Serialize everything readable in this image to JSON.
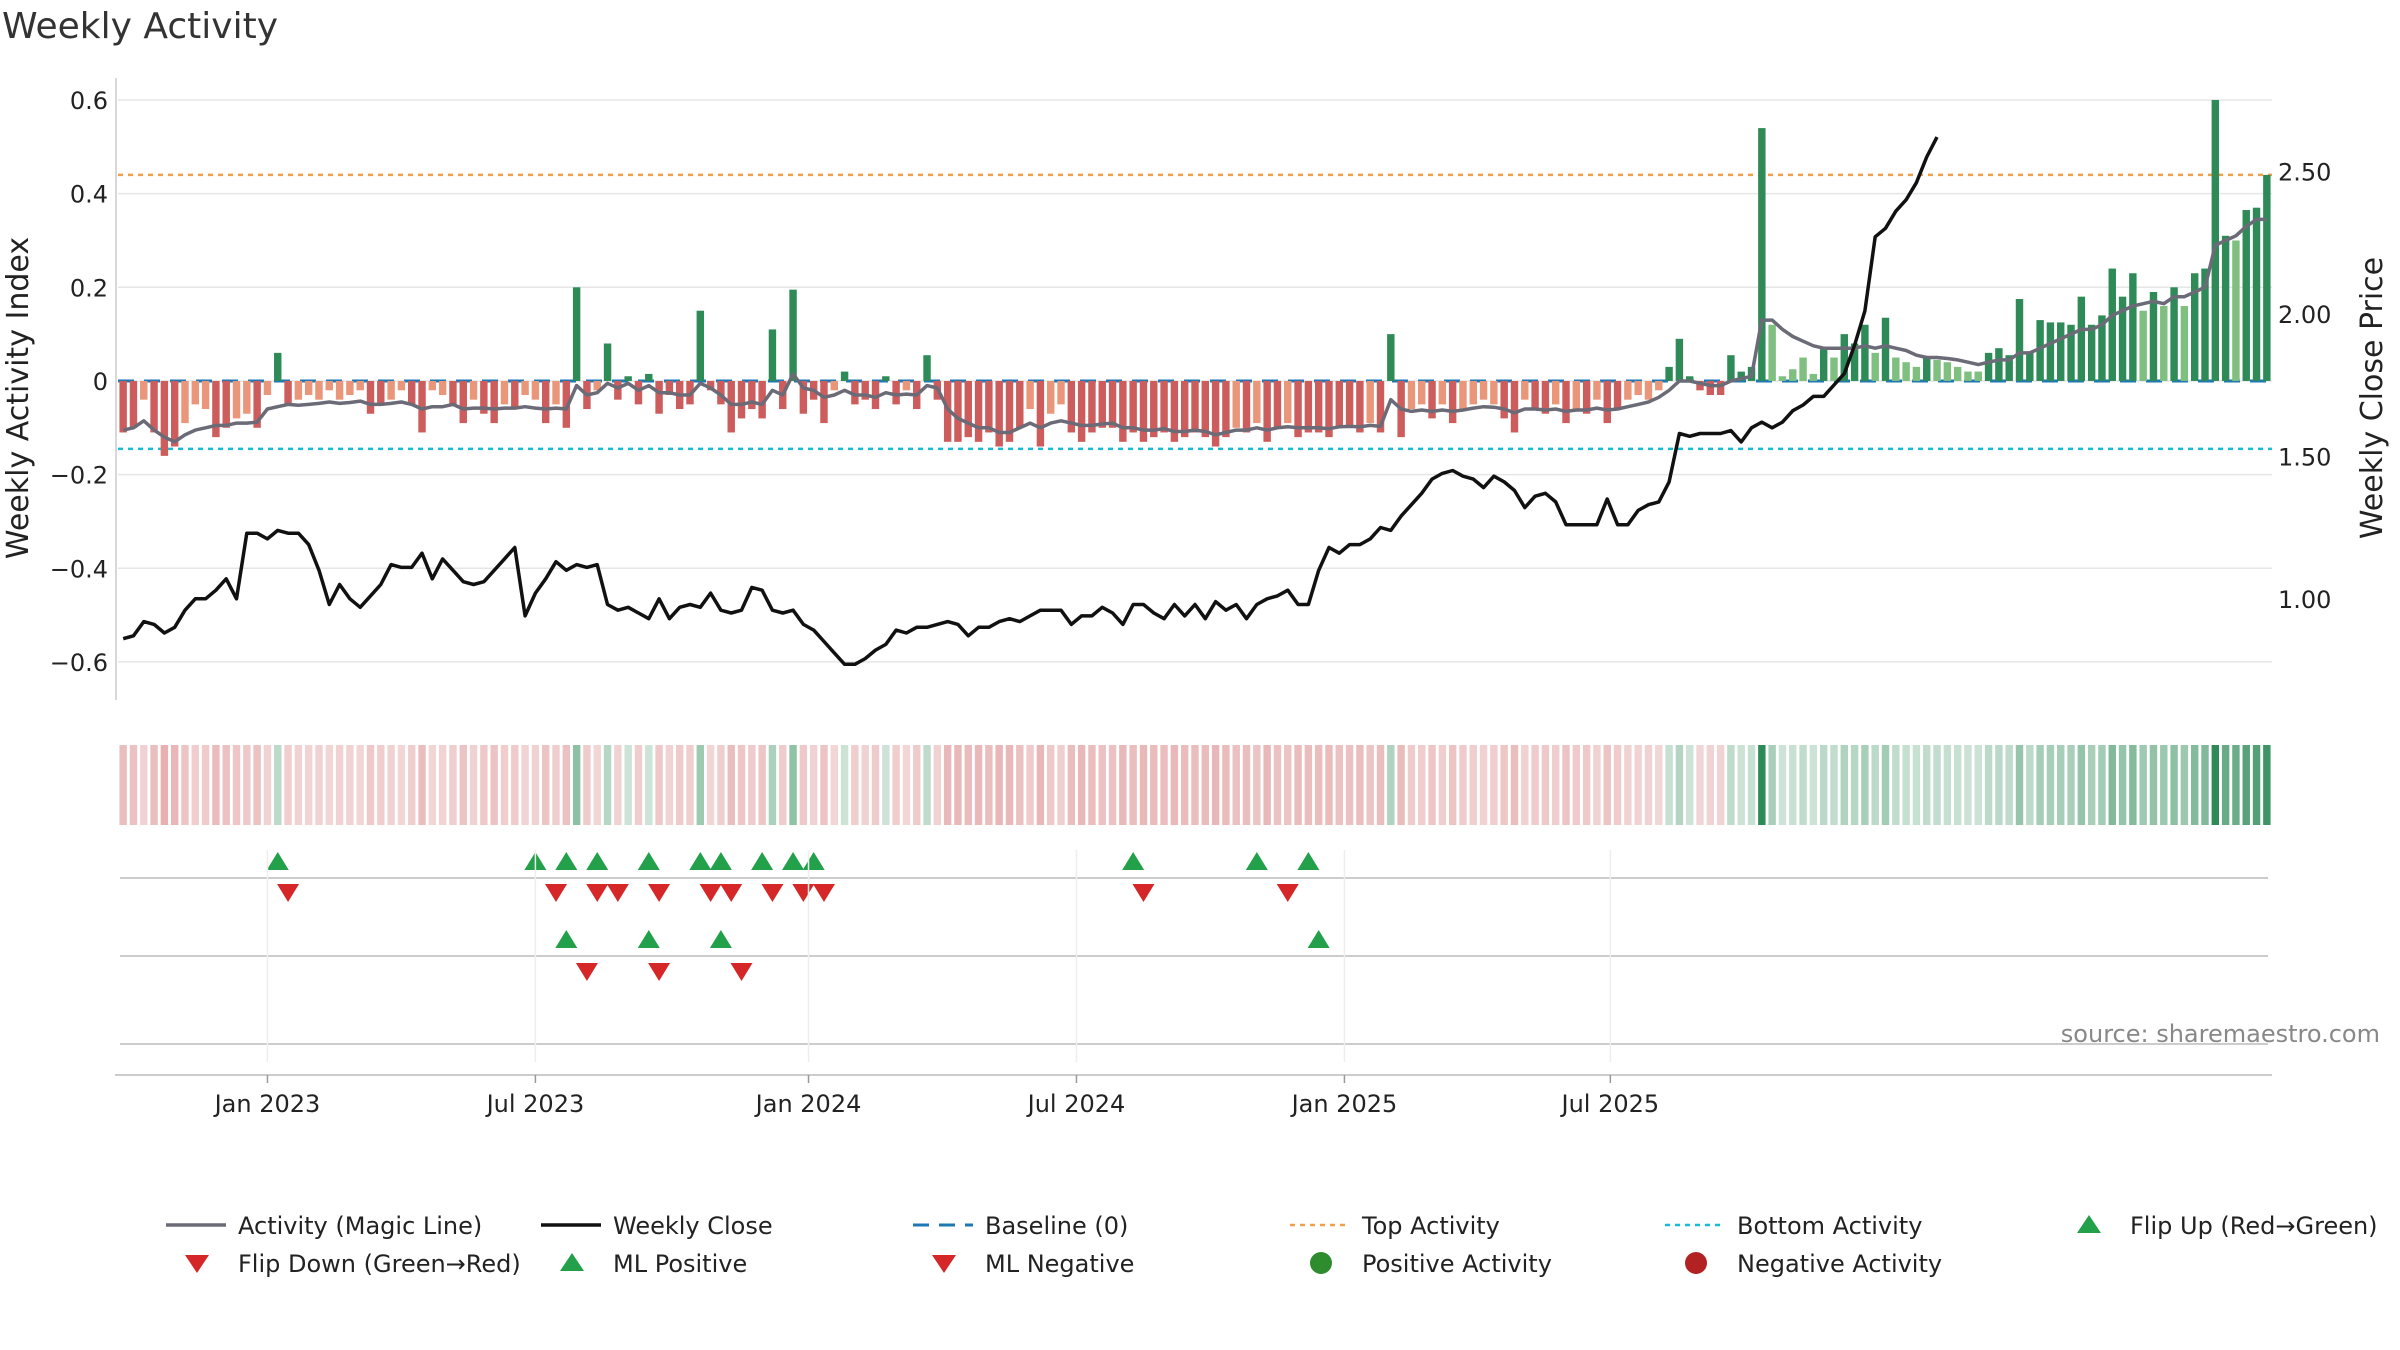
{
  "chart_data": {
    "type": "bar+line",
    "title": "Weekly Activity",
    "ylabel_left": "Weekly Activity Index",
    "ylabel_right": "Weekly Close Price",
    "source": "source: sharemaestro.com",
    "left_ylim": [
      -0.66,
      0.6
    ],
    "left_ticks": [
      "0.6",
      "0.4",
      "0.2",
      "0",
      "−0.2",
      "−0.4",
      "−0.6"
    ],
    "left_tick_values": [
      0.6,
      0.4,
      0.2,
      0,
      -0.2,
      -0.4,
      -0.6
    ],
    "right_ylim": [
      0.68,
      2.75
    ],
    "right_ticks": [
      "2.50",
      "2.00",
      "1.50",
      "1.00"
    ],
    "right_tick_values": [
      2.5,
      2.0,
      1.5,
      1.0
    ],
    "x_ticks": [
      "Jan 2023",
      "Jul 2023",
      "Jan 2024",
      "Jul 2024",
      "Jan 2025",
      "Jul 2025"
    ],
    "x_tick_weeks": [
      14,
      40,
      66.5,
      92.5,
      118.5,
      144.3
    ],
    "top_activity": 0.44,
    "bottom_activity": -0.145,
    "activity": [
      -0.11,
      -0.1,
      -0.04,
      -0.11,
      -0.16,
      -0.14,
      -0.09,
      -0.05,
      -0.06,
      -0.12,
      -0.1,
      -0.08,
      -0.07,
      -0.1,
      -0.03,
      0.06,
      -0.05,
      -0.04,
      -0.03,
      -0.04,
      -0.02,
      -0.04,
      -0.03,
      -0.02,
      -0.07,
      -0.05,
      -0.04,
      -0.02,
      -0.05,
      -0.11,
      -0.02,
      -0.03,
      -0.05,
      -0.09,
      -0.04,
      -0.07,
      -0.09,
      -0.05,
      -0.06,
      -0.03,
      -0.04,
      -0.09,
      -0.05,
      -0.1,
      0.2,
      -0.06,
      -0.02,
      0.08,
      -0.04,
      0.01,
      -0.05,
      0.015,
      -0.07,
      -0.03,
      -0.06,
      -0.05,
      0.15,
      -0.02,
      -0.05,
      -0.11,
      -0.08,
      -0.06,
      -0.08,
      0.11,
      -0.06,
      0.195,
      -0.07,
      -0.04,
      -0.09,
      -0.02,
      0.02,
      -0.05,
      -0.04,
      -0.06,
      0.01,
      -0.05,
      -0.02,
      -0.06,
      0.055,
      -0.04,
      -0.13,
      -0.13,
      -0.12,
      -0.13,
      -0.11,
      -0.14,
      -0.13,
      -0.1,
      -0.06,
      -0.14,
      -0.07,
      -0.05,
      -0.11,
      -0.13,
      -0.11,
      -0.1,
      -0.1,
      -0.13,
      -0.11,
      -0.13,
      -0.12,
      -0.11,
      -0.13,
      -0.12,
      -0.11,
      -0.12,
      -0.14,
      -0.12,
      -0.1,
      -0.11,
      -0.09,
      -0.13,
      -0.1,
      -0.09,
      -0.12,
      -0.11,
      -0.11,
      -0.12,
      -0.1,
      -0.1,
      -0.11,
      -0.09,
      -0.11,
      0.1,
      -0.12,
      -0.06,
      -0.05,
      -0.08,
      -0.05,
      -0.09,
      -0.06,
      -0.05,
      -0.04,
      -0.05,
      -0.08,
      -0.11,
      -0.04,
      -0.06,
      -0.07,
      -0.05,
      -0.09,
      -0.06,
      -0.07,
      -0.04,
      -0.09,
      -0.06,
      -0.04,
      -0.03,
      -0.04,
      -0.02,
      0.03,
      0.09,
      0.01,
      -0.02,
      -0.03,
      -0.03,
      0.055,
      0.02,
      0.03,
      0.54,
      0.12,
      0.01,
      0.025,
      0.05,
      0.015,
      0.07,
      0.05,
      0.1,
      0.08,
      0.12,
      0.06,
      0.135,
      0.05,
      0.04,
      0.03,
      0.05,
      0.045,
      0.04,
      0.03,
      0.02,
      0.02,
      0.06,
      0.07,
      0.055,
      0.175,
      0.06,
      0.13,
      0.125,
      0.125,
      0.12,
      0.18,
      0.12,
      0.14,
      0.24,
      0.18,
      0.23,
      0.15,
      0.19,
      0.16,
      0.2,
      0.16,
      0.23,
      0.24,
      0.6,
      0.31,
      0.3,
      0.365,
      0.37,
      0.44
    ],
    "magic_line": [
      -0.105,
      -0.1,
      -0.085,
      -0.105,
      -0.12,
      -0.13,
      -0.115,
      -0.105,
      -0.1,
      -0.095,
      -0.095,
      -0.09,
      -0.09,
      -0.088,
      -0.06,
      -0.055,
      -0.05,
      -0.052,
      -0.05,
      -0.048,
      -0.045,
      -0.048,
      -0.046,
      -0.043,
      -0.05,
      -0.05,
      -0.048,
      -0.045,
      -0.05,
      -0.06,
      -0.055,
      -0.055,
      -0.05,
      -0.06,
      -0.058,
      -0.058,
      -0.06,
      -0.058,
      -0.058,
      -0.055,
      -0.058,
      -0.06,
      -0.058,
      -0.06,
      -0.01,
      -0.03,
      -0.025,
      -0.005,
      -0.015,
      -0.005,
      -0.02,
      -0.01,
      -0.025,
      -0.025,
      -0.03,
      -0.03,
      -0.005,
      -0.015,
      -0.03,
      -0.05,
      -0.05,
      -0.045,
      -0.05,
      -0.02,
      -0.03,
      0.015,
      -0.015,
      -0.02,
      -0.035,
      -0.03,
      -0.02,
      -0.03,
      -0.03,
      -0.035,
      -0.025,
      -0.03,
      -0.028,
      -0.03,
      -0.01,
      -0.015,
      -0.06,
      -0.08,
      -0.09,
      -0.1,
      -0.1,
      -0.11,
      -0.11,
      -0.1,
      -0.09,
      -0.1,
      -0.09,
      -0.085,
      -0.09,
      -0.095,
      -0.095,
      -0.092,
      -0.09,
      -0.1,
      -0.1,
      -0.105,
      -0.105,
      -0.102,
      -0.108,
      -0.108,
      -0.105,
      -0.108,
      -0.115,
      -0.11,
      -0.105,
      -0.105,
      -0.1,
      -0.105,
      -0.1,
      -0.098,
      -0.1,
      -0.1,
      -0.1,
      -0.102,
      -0.098,
      -0.097,
      -0.098,
      -0.095,
      -0.097,
      -0.04,
      -0.06,
      -0.065,
      -0.062,
      -0.065,
      -0.062,
      -0.065,
      -0.062,
      -0.058,
      -0.055,
      -0.056,
      -0.06,
      -0.068,
      -0.06,
      -0.06,
      -0.062,
      -0.06,
      -0.065,
      -0.062,
      -0.062,
      -0.058,
      -0.062,
      -0.06,
      -0.055,
      -0.05,
      -0.045,
      -0.035,
      -0.02,
      0.0,
      0.0,
      -0.005,
      -0.01,
      -0.01,
      0.0,
      0.005,
      0.01,
      0.13,
      0.13,
      0.11,
      0.095,
      0.085,
      0.075,
      0.07,
      0.07,
      0.07,
      0.07,
      0.075,
      0.07,
      0.075,
      0.07,
      0.065,
      0.055,
      0.05,
      0.05,
      0.048,
      0.045,
      0.04,
      0.035,
      0.04,
      0.045,
      0.045,
      0.06,
      0.06,
      0.07,
      0.08,
      0.09,
      0.1,
      0.11,
      0.11,
      0.12,
      0.14,
      0.15,
      0.16,
      0.165,
      0.17,
      0.165,
      0.18,
      0.18,
      0.19,
      0.2,
      0.29,
      0.3,
      0.31,
      0.33,
      0.345,
      0.345
    ],
    "close": [
      0.86,
      0.87,
      0.92,
      0.91,
      0.88,
      0.9,
      0.96,
      1.0,
      1.0,
      1.03,
      1.07,
      1.0,
      1.23,
      1.23,
      1.21,
      1.24,
      1.23,
      1.23,
      1.19,
      1.1,
      0.98,
      1.05,
      1.0,
      0.97,
      1.01,
      1.05,
      1.12,
      1.11,
      1.11,
      1.16,
      1.07,
      1.14,
      1.1,
      1.06,
      1.05,
      1.06,
      1.1,
      1.14,
      1.18,
      0.94,
      1.02,
      1.07,
      1.13,
      1.1,
      1.12,
      1.11,
      1.12,
      0.98,
      0.96,
      0.97,
      0.95,
      0.93,
      1.0,
      0.93,
      0.97,
      0.98,
      0.97,
      1.02,
      0.96,
      0.95,
      0.96,
      1.04,
      1.03,
      0.96,
      0.95,
      0.96,
      0.91,
      0.89,
      0.85,
      0.81,
      0.77,
      0.77,
      0.79,
      0.82,
      0.84,
      0.89,
      0.88,
      0.9,
      0.9,
      0.91,
      0.92,
      0.91,
      0.87,
      0.9,
      0.9,
      0.92,
      0.93,
      0.92,
      0.94,
      0.96,
      0.96,
      0.96,
      0.91,
      0.94,
      0.94,
      0.97,
      0.95,
      0.91,
      0.98,
      0.98,
      0.95,
      0.93,
      0.98,
      0.94,
      0.98,
      0.93,
      0.99,
      0.96,
      0.98,
      0.93,
      0.98,
      1.0,
      1.01,
      1.03,
      0.98,
      0.98,
      1.1,
      1.18,
      1.16,
      1.19,
      1.19,
      1.21,
      1.25,
      1.24,
      1.29,
      1.33,
      1.37,
      1.42,
      1.44,
      1.45,
      1.43,
      1.42,
      1.39,
      1.43,
      1.41,
      1.38,
      1.32,
      1.36,
      1.37,
      1.34,
      1.26,
      1.26,
      1.26,
      1.26,
      1.35,
      1.26,
      1.26,
      1.31,
      1.33,
      1.34,
      1.41,
      1.58,
      1.57,
      1.58,
      1.58,
      1.58,
      1.59,
      1.55,
      1.6,
      1.62,
      1.6,
      1.62,
      1.66,
      1.68,
      1.71,
      1.71,
      1.75,
      1.79,
      1.89,
      2.01,
      2.27,
      2.3,
      2.36,
      2.4,
      2.46,
      2.55,
      2.62
    ],
    "close_x_start": 0,
    "flip_up_row1": [
      15,
      40,
      43,
      46,
      51,
      56,
      58,
      62,
      65,
      67,
      98,
      110,
      115
    ],
    "flip_down_row1": [
      16,
      42,
      46,
      48,
      52,
      57,
      59,
      63,
      66,
      68,
      99,
      113
    ],
    "ml_positive_row2": [
      43,
      51,
      58,
      116
    ],
    "ml_negative_row2": [
      45,
      52,
      60
    ],
    "legend": [
      {
        "label": "Activity (Magic Line)",
        "kind": "line",
        "color": "#6b6b78"
      },
      {
        "label": "Weekly Close",
        "kind": "line",
        "color": "#111111"
      },
      {
        "label": "Baseline (0)",
        "kind": "dashed",
        "color": "#1f77b4"
      },
      {
        "label": "Top Activity",
        "kind": "dotted",
        "color": "#f0a04b"
      },
      {
        "label": "Bottom Activity",
        "kind": "dotted",
        "color": "#17becf"
      },
      {
        "label": "Flip Up (Red→Green)",
        "kind": "up",
        "color": "#22a04a"
      },
      {
        "label": "Flip Down (Green→Red)",
        "kind": "down",
        "color": "#d62728"
      },
      {
        "label": "ML Positive",
        "kind": "up",
        "color": "#22a04a"
      },
      {
        "label": "ML Negative",
        "kind": "down",
        "color": "#d62728"
      },
      {
        "label": "Positive Activity",
        "kind": "dot",
        "color": "#2e8b2e"
      },
      {
        "label": "Negative Activity",
        "kind": "dot",
        "color": "#b22222"
      }
    ],
    "colors": {
      "pos_strong": "#2e8b57",
      "pos_light": "#7fbf7f",
      "neg_strong": "#cd5c5c",
      "neg_light": "#e9967a",
      "magic_line": "#6b6b78",
      "close": "#111111",
      "baseline": "#1f77b4",
      "top": "#f0a04b",
      "bottom": "#17becf",
      "grid": "#e6e6e6",
      "axis": "#cccccc"
    }
  }
}
